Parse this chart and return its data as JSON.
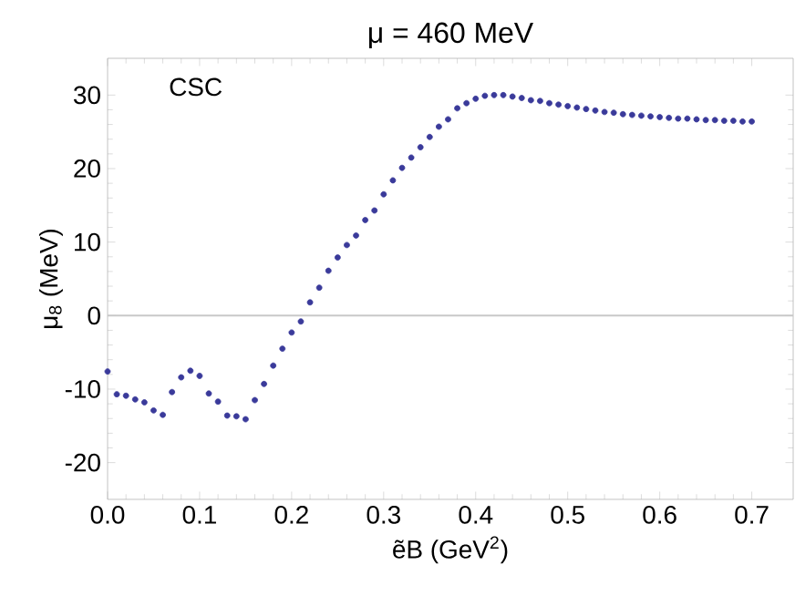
{
  "chart_data": {
    "type": "scatter",
    "title": "μ = 460 MeV",
    "xlabel": "ẽB (GeV$^{2}$)",
    "ylabel": "μ$_{8}$ (MeV)",
    "annotations": [
      "CSC"
    ],
    "x": [
      0.0,
      0.01,
      0.02,
      0.03,
      0.04,
      0.05,
      0.06,
      0.07,
      0.08,
      0.09,
      0.1,
      0.11,
      0.12,
      0.13,
      0.14,
      0.15,
      0.16,
      0.17,
      0.18,
      0.19,
      0.2,
      0.21,
      0.22,
      0.23,
      0.24,
      0.25,
      0.26,
      0.27,
      0.28,
      0.29,
      0.3,
      0.31,
      0.32,
      0.33,
      0.34,
      0.35,
      0.36,
      0.37,
      0.38,
      0.39,
      0.4,
      0.41,
      0.42,
      0.43,
      0.44,
      0.45,
      0.46,
      0.47,
      0.48,
      0.49,
      0.5,
      0.51,
      0.52,
      0.53,
      0.54,
      0.55,
      0.56,
      0.57,
      0.58,
      0.59,
      0.6,
      0.61,
      0.62,
      0.63,
      0.64,
      0.65,
      0.66,
      0.67,
      0.68,
      0.69,
      0.7
    ],
    "series": [
      {
        "color": "#3a3a9a",
        "values": [
          -7.6,
          -10.7,
          -10.9,
          -11.4,
          -11.8,
          -12.9,
          -13.5,
          -10.4,
          -8.4,
          -7.5,
          -8.2,
          -10.6,
          -11.7,
          -13.6,
          -13.7,
          -14.1,
          -11.5,
          -9.3,
          -6.8,
          -4.5,
          -2.3,
          -0.8,
          1.8,
          3.8,
          6.1,
          7.9,
          9.6,
          10.9,
          13.0,
          14.3,
          16.5,
          18.4,
          20.1,
          21.5,
          22.9,
          24.3,
          25.7,
          26.7,
          28.2,
          28.9,
          29.5,
          29.9,
          30.0,
          30.0,
          29.8,
          29.6,
          29.3,
          29.2,
          28.9,
          28.7,
          28.5,
          28.3,
          28.1,
          27.9,
          27.7,
          27.6,
          27.4,
          27.3,
          27.2,
          27.1,
          27.0,
          26.9,
          26.8,
          26.8,
          26.7,
          26.6,
          26.6,
          26.5,
          26.5,
          26.4,
          26.4
        ]
      }
    ],
    "xlim": [
      0,
      0.745
    ],
    "ylim": [
      -25,
      35
    ],
    "xticks": [
      {
        "value": 0,
        "label": "0.0"
      },
      0.1,
      0.2,
      0.3,
      0.4,
      0.5,
      0.6,
      0.7
    ],
    "yticks": [
      -20,
      -10,
      0,
      10,
      20,
      30
    ],
    "ref_lines": [
      {
        "axis": "y",
        "value": 0,
        "color": "#c8c8c8"
      }
    ],
    "marker": "circle",
    "grid": false,
    "legend": false
  }
}
